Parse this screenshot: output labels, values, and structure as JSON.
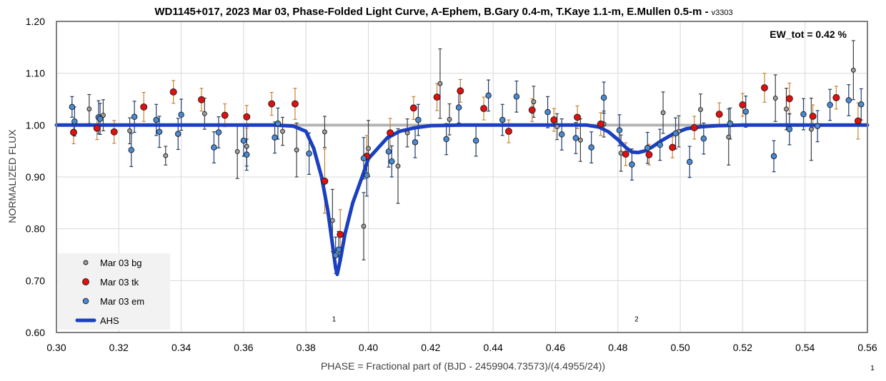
{
  "chart_data": {
    "type": "scatter",
    "title": "WD1145+017, 2023 Mar 03, Phase-Folded Light Curve, A-Ephem, B.Gary 0.4-m, T.Kaye 1.1-m, E.Mullen 0.5-m -",
    "version": "v3303",
    "xlabel": "PHASE = Fractional part of (BJD - 2459904.73573)/(4.4955/24))",
    "ylabel": "NORMALIZED FLUX",
    "xlim": [
      0.3,
      0.56
    ],
    "ylim": [
      0.6,
      1.2
    ],
    "x_ticks": [
      "0.30",
      "0.32",
      "0.34",
      "0.36",
      "0.38",
      "0.40",
      "0.42",
      "0.44",
      "0.46",
      "0.48",
      "0.50",
      "0.52",
      "0.54",
      "0.56"
    ],
    "y_ticks": [
      "0.60",
      "0.70",
      "0.80",
      "0.90",
      "1.00",
      "1.10",
      "1.20"
    ],
    "grid": true,
    "legend_position": "bottom-left",
    "annotation": "EW_tot = 0.42 %",
    "dip_labels": [
      {
        "text": "1",
        "x": 0.389,
        "y": 0.621
      },
      {
        "text": "2",
        "x": 0.486,
        "y": 0.621
      }
    ],
    "corner_label": "1",
    "reference_level": 1.0,
    "series": [
      {
        "name": "Mar 03 bg",
        "color": "#9e9e9e",
        "errorbar_color": "#404040",
        "points": [
          {
            "x": 0.3105,
            "y": 1.031,
            "e": 0.028
          },
          {
            "x": 0.315,
            "y": 1.019,
            "e": 0.03
          },
          {
            "x": 0.3235,
            "y": 0.989,
            "e": 0.025
          },
          {
            "x": 0.335,
            "y": 0.941,
            "e": 0.018
          },
          {
            "x": 0.3475,
            "y": 1.022,
            "e": 0.03
          },
          {
            "x": 0.358,
            "y": 0.949,
            "e": 0.052
          },
          {
            "x": 0.361,
            "y": 0.959,
            "e": 0.038
          },
          {
            "x": 0.3725,
            "y": 0.988,
            "e": 0.027
          },
          {
            "x": 0.377,
            "y": 0.952,
            "e": 0.052
          },
          {
            "x": 0.386,
            "y": 0.987,
            "e": 0.03
          },
          {
            "x": 0.3885,
            "y": 0.816,
            "e": 0.06
          },
          {
            "x": 0.3985,
            "y": 0.805,
            "e": 0.065
          },
          {
            "x": 0.4,
            "y": 0.955,
            "e": 0.054
          },
          {
            "x": 0.4095,
            "y": 0.921,
            "e": 0.072
          },
          {
            "x": 0.4125,
            "y": 0.985,
            "e": 0.027
          },
          {
            "x": 0.423,
            "y": 1.08,
            "e": 0.067
          },
          {
            "x": 0.426,
            "y": 1.011,
            "e": 0.03
          },
          {
            "x": 0.453,
            "y": 1.045,
            "e": 0.03
          },
          {
            "x": 0.4605,
            "y": 0.997,
            "e": 0.025
          },
          {
            "x": 0.468,
            "y": 0.971,
            "e": 0.041
          },
          {
            "x": 0.4755,
            "y": 1.002,
            "e": 0.025
          },
          {
            "x": 0.481,
            "y": 0.946,
            "e": 0.035
          },
          {
            "x": 0.4945,
            "y": 1.024,
            "e": 0.04
          },
          {
            "x": 0.4995,
            "y": 0.988,
            "e": 0.03
          },
          {
            "x": 0.5065,
            "y": 1.03,
            "e": 0.03
          },
          {
            "x": 0.5155,
            "y": 0.977,
            "e": 0.054
          },
          {
            "x": 0.5305,
            "y": 1.052,
            "e": 0.045
          },
          {
            "x": 0.534,
            "y": 1.031,
            "e": 0.04
          },
          {
            "x": 0.542,
            "y": 0.992,
            "e": 0.06
          },
          {
            "x": 0.5555,
            "y": 1.106,
            "e": 0.057
          }
        ]
      },
      {
        "name": "Mar 03 tk",
        "color": "#e01010",
        "errorbar_color": "#c8823a",
        "points": [
          {
            "x": 0.3055,
            "y": 0.986,
            "e": 0.022
          },
          {
            "x": 0.313,
            "y": 0.994,
            "e": 0.022
          },
          {
            "x": 0.3185,
            "y": 0.987,
            "e": 0.022
          },
          {
            "x": 0.328,
            "y": 1.035,
            "e": 0.028
          },
          {
            "x": 0.3375,
            "y": 1.064,
            "e": 0.022
          },
          {
            "x": 0.3465,
            "y": 1.049,
            "e": 0.022
          },
          {
            "x": 0.354,
            "y": 1.019,
            "e": 0.022
          },
          {
            "x": 0.361,
            "y": 1.016,
            "e": 0.022
          },
          {
            "x": 0.369,
            "y": 1.041,
            "e": 0.022
          },
          {
            "x": 0.3765,
            "y": 1.041,
            "e": 0.03
          },
          {
            "x": 0.386,
            "y": 0.892,
            "e": 0.062
          },
          {
            "x": 0.391,
            "y": 0.789,
            "e": 0.048
          },
          {
            "x": 0.3995,
            "y": 0.94,
            "e": 0.04
          },
          {
            "x": 0.407,
            "y": 0.985,
            "e": 0.028
          },
          {
            "x": 0.4145,
            "y": 1.033,
            "e": 0.022
          },
          {
            "x": 0.422,
            "y": 1.054,
            "e": 0.026
          },
          {
            "x": 0.4295,
            "y": 1.066,
            "e": 0.022
          },
          {
            "x": 0.437,
            "y": 1.032,
            "e": 0.022
          },
          {
            "x": 0.445,
            "y": 0.988,
            "e": 0.022
          },
          {
            "x": 0.4525,
            "y": 1.029,
            "e": 0.022
          },
          {
            "x": 0.4595,
            "y": 1.01,
            "e": 0.022
          },
          {
            "x": 0.467,
            "y": 1.015,
            "e": 0.022
          },
          {
            "x": 0.4745,
            "y": 1.002,
            "e": 0.022
          },
          {
            "x": 0.4825,
            "y": 0.944,
            "e": 0.022
          },
          {
            "x": 0.49,
            "y": 0.943,
            "e": 0.02
          },
          {
            "x": 0.4975,
            "y": 0.957,
            "e": 0.02
          },
          {
            "x": 0.5045,
            "y": 0.995,
            "e": 0.022
          },
          {
            "x": 0.5125,
            "y": 1.021,
            "e": 0.022
          },
          {
            "x": 0.52,
            "y": 1.039,
            "e": 0.022
          },
          {
            "x": 0.527,
            "y": 1.072,
            "e": 0.028
          },
          {
            "x": 0.535,
            "y": 1.051,
            "e": 0.03
          },
          {
            "x": 0.5425,
            "y": 1.017,
            "e": 0.022
          },
          {
            "x": 0.55,
            "y": 1.053,
            "e": 0.022
          },
          {
            "x": 0.557,
            "y": 1.008,
            "e": 0.035
          }
        ]
      },
      {
        "name": "Mar 03 em",
        "color": "#4a8ad4",
        "errorbar_color": "#1f3d6b",
        "points": [
          {
            "x": 0.305,
            "y": 1.035,
            "e": 0.02
          },
          {
            "x": 0.3058,
            "y": 1.007,
            "e": 0.028
          },
          {
            "x": 0.3135,
            "y": 1.015,
            "e": 0.032
          },
          {
            "x": 0.314,
            "y": 1.012,
            "e": 0.03
          },
          {
            "x": 0.324,
            "y": 0.952,
            "e": 0.032
          },
          {
            "x": 0.325,
            "y": 1.016,
            "e": 0.03
          },
          {
            "x": 0.332,
            "y": 1.01,
            "e": 0.03
          },
          {
            "x": 0.333,
            "y": 0.987,
            "e": 0.03
          },
          {
            "x": 0.339,
            "y": 0.983,
            "e": 0.03
          },
          {
            "x": 0.34,
            "y": 1.02,
            "e": 0.03
          },
          {
            "x": 0.3505,
            "y": 0.957,
            "e": 0.03
          },
          {
            "x": 0.352,
            "y": 0.986,
            "e": 0.03
          },
          {
            "x": 0.36,
            "y": 0.97,
            "e": 0.03
          },
          {
            "x": 0.361,
            "y": 0.943,
            "e": 0.03
          },
          {
            "x": 0.37,
            "y": 0.976,
            "e": 0.03
          },
          {
            "x": 0.371,
            "y": 1.003,
            "e": 0.03
          },
          {
            "x": 0.381,
            "y": 0.945,
            "e": 0.04
          },
          {
            "x": 0.3895,
            "y": 0.749,
            "e": 0.035
          },
          {
            "x": 0.3905,
            "y": 0.76,
            "e": 0.035
          },
          {
            "x": 0.3985,
            "y": 0.936,
            "e": 0.04
          },
          {
            "x": 0.3995,
            "y": 0.903,
            "e": 0.04
          },
          {
            "x": 0.4065,
            "y": 0.949,
            "e": 0.03
          },
          {
            "x": 0.4075,
            "y": 0.93,
            "e": 0.03
          },
          {
            "x": 0.415,
            "y": 0.967,
            "e": 0.03
          },
          {
            "x": 0.416,
            "y": 1.01,
            "e": 0.03
          },
          {
            "x": 0.425,
            "y": 0.973,
            "e": 0.03
          },
          {
            "x": 0.429,
            "y": 1.034,
            "e": 0.03
          },
          {
            "x": 0.4345,
            "y": 0.97,
            "e": 0.03
          },
          {
            "x": 0.4385,
            "y": 1.057,
            "e": 0.03
          },
          {
            "x": 0.443,
            "y": 1.01,
            "e": 0.03
          },
          {
            "x": 0.4475,
            "y": 1.055,
            "e": 0.03
          },
          {
            "x": 0.4575,
            "y": 1.025,
            "e": 0.03
          },
          {
            "x": 0.462,
            "y": 0.982,
            "e": 0.03
          },
          {
            "x": 0.4665,
            "y": 0.975,
            "e": 0.03
          },
          {
            "x": 0.4715,
            "y": 0.957,
            "e": 0.03
          },
          {
            "x": 0.4755,
            "y": 1.053,
            "e": 0.03
          },
          {
            "x": 0.4805,
            "y": 0.99,
            "e": 0.03
          },
          {
            "x": 0.4845,
            "y": 0.924,
            "e": 0.03
          },
          {
            "x": 0.4895,
            "y": 0.956,
            "e": 0.03
          },
          {
            "x": 0.4935,
            "y": 0.962,
            "e": 0.03
          },
          {
            "x": 0.4985,
            "y": 0.984,
            "e": 0.03
          },
          {
            "x": 0.503,
            "y": 0.929,
            "e": 0.03
          },
          {
            "x": 0.5075,
            "y": 0.974,
            "e": 0.03
          },
          {
            "x": 0.516,
            "y": 1.003,
            "e": 0.03
          },
          {
            "x": 0.521,
            "y": 1.026,
            "e": 0.03
          },
          {
            "x": 0.53,
            "y": 0.94,
            "e": 0.03
          },
          {
            "x": 0.535,
            "y": 0.992,
            "e": 0.03
          },
          {
            "x": 0.5395,
            "y": 1.021,
            "e": 0.03
          },
          {
            "x": 0.544,
            "y": 0.998,
            "e": 0.03
          },
          {
            "x": 0.548,
            "y": 1.039,
            "e": 0.03
          },
          {
            "x": 0.554,
            "y": 1.048,
            "e": 0.03
          },
          {
            "x": 0.558,
            "y": 1.04,
            "e": 0.03
          }
        ]
      },
      {
        "name": "AHS",
        "type": "line",
        "color": "#1a3fbf",
        "x": [
          0.3,
          0.37,
          0.376,
          0.38,
          0.3825,
          0.385,
          0.387,
          0.3885,
          0.3895,
          0.39,
          0.391,
          0.3925,
          0.395,
          0.398,
          0.4,
          0.403,
          0.406,
          0.41,
          0.415,
          0.42,
          0.43,
          0.47,
          0.474,
          0.477,
          0.48,
          0.4825,
          0.4845,
          0.4865,
          0.4885,
          0.491,
          0.494,
          0.498,
          0.502,
          0.507,
          0.512,
          0.52,
          0.56
        ],
        "y": [
          1.0,
          1.0,
          0.998,
          0.988,
          0.955,
          0.9,
          0.835,
          0.77,
          0.725,
          0.712,
          0.74,
          0.79,
          0.85,
          0.9,
          0.935,
          0.955,
          0.975,
          0.988,
          0.995,
          0.999,
          1.0,
          1.0,
          0.996,
          0.987,
          0.972,
          0.957,
          0.948,
          0.947,
          0.95,
          0.958,
          0.97,
          0.984,
          0.993,
          0.997,
          0.999,
          1.0,
          1.0
        ]
      }
    ]
  }
}
